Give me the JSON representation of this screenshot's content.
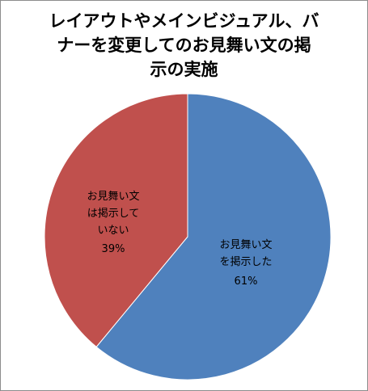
{
  "chart_data": {
    "type": "pie",
    "title_lines": [
      "レイアウトやメインビジュアル、バ",
      "ナーを変更してのお見舞い文の掲",
      "示の実施"
    ],
    "slices": [
      {
        "label_lines": [
          "お見舞い文",
          "を掲示した"
        ],
        "percent_label": "61%",
        "value": 61,
        "color": "#4f81bd"
      },
      {
        "label_lines": [
          "お見舞い文",
          "は掲示して",
          "いない"
        ],
        "percent_label": "39%",
        "value": 39,
        "color": "#c0504d"
      }
    ],
    "start_angle": "12 o'clock",
    "direction": "clockwise"
  }
}
